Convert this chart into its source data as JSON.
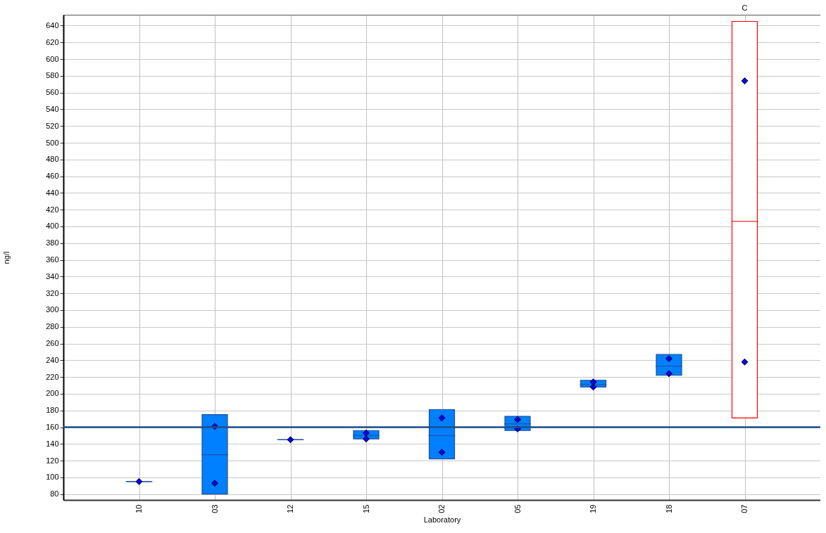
{
  "chart_data": {
    "type": "box",
    "xlabel": "Laboratory",
    "ylabel": "ng/l",
    "categories": [
      "10",
      "03",
      "12",
      "15",
      "02",
      "05",
      "19",
      "18",
      "07"
    ],
    "series": [
      {
        "colors": [
          "#1f4e9a",
          "#0080ff",
          "#1f4e9a",
          "#0080ff",
          "#0080ff",
          "#0080ff",
          "#0080ff",
          "#0080ff",
          "#ff0000"
        ],
        "boxes": [
          {
            "low": 95,
            "q1": 95,
            "median": 95,
            "q3": 95,
            "high": 95
          },
          {
            "low": 80,
            "q1": 80,
            "median": 127,
            "q3": 175,
            "high": 175
          },
          {
            "low": 145,
            "q1": 145,
            "median": 145,
            "q3": 145,
            "high": 145
          },
          {
            "low": 146,
            "q1": 146,
            "median": 150,
            "q3": 156,
            "high": 156
          },
          {
            "low": 122,
            "q1": 122,
            "median": 150,
            "q3": 181,
            "high": 181
          },
          {
            "low": 156,
            "q1": 156,
            "median": 164,
            "q3": 173,
            "high": 173
          },
          {
            "low": 208,
            "q1": 208,
            "median": 211,
            "q3": 216,
            "high": 216
          },
          {
            "low": 222,
            "q1": 222,
            "median": 233,
            "q3": 247,
            "high": 247
          },
          {
            "low": 171,
            "q1": 171,
            "median": 406,
            "q3": 645,
            "high": 645
          }
        ]
      },
      {
        "type": "scatter",
        "color": "#0000ff",
        "marker": "diamond",
        "x": [
          "10",
          "03",
          "03",
          "12",
          "15",
          "15",
          "02",
          "02",
          "05",
          "05",
          "19",
          "19",
          "18",
          "18",
          "07",
          "07"
        ],
        "values": [
          95,
          161,
          93,
          145,
          153,
          146,
          171,
          130,
          169,
          158,
          214,
          208,
          242,
          224,
          574,
          238
        ]
      }
    ],
    "ref_lines": [
      {
        "axis": "y",
        "value": 160,
        "color": "#1f4e8c"
      }
    ],
    "annotations": [
      "C"
    ],
    "ylim": [
      73,
      653
    ],
    "yticks": [
      80,
      100,
      120,
      140,
      160,
      180,
      200,
      220,
      240,
      260,
      280,
      300,
      320,
      340,
      360,
      380,
      400,
      420,
      440,
      460,
      480,
      500,
      520,
      540,
      560,
      580,
      600,
      620,
      640
    ],
    "grid": true
  }
}
